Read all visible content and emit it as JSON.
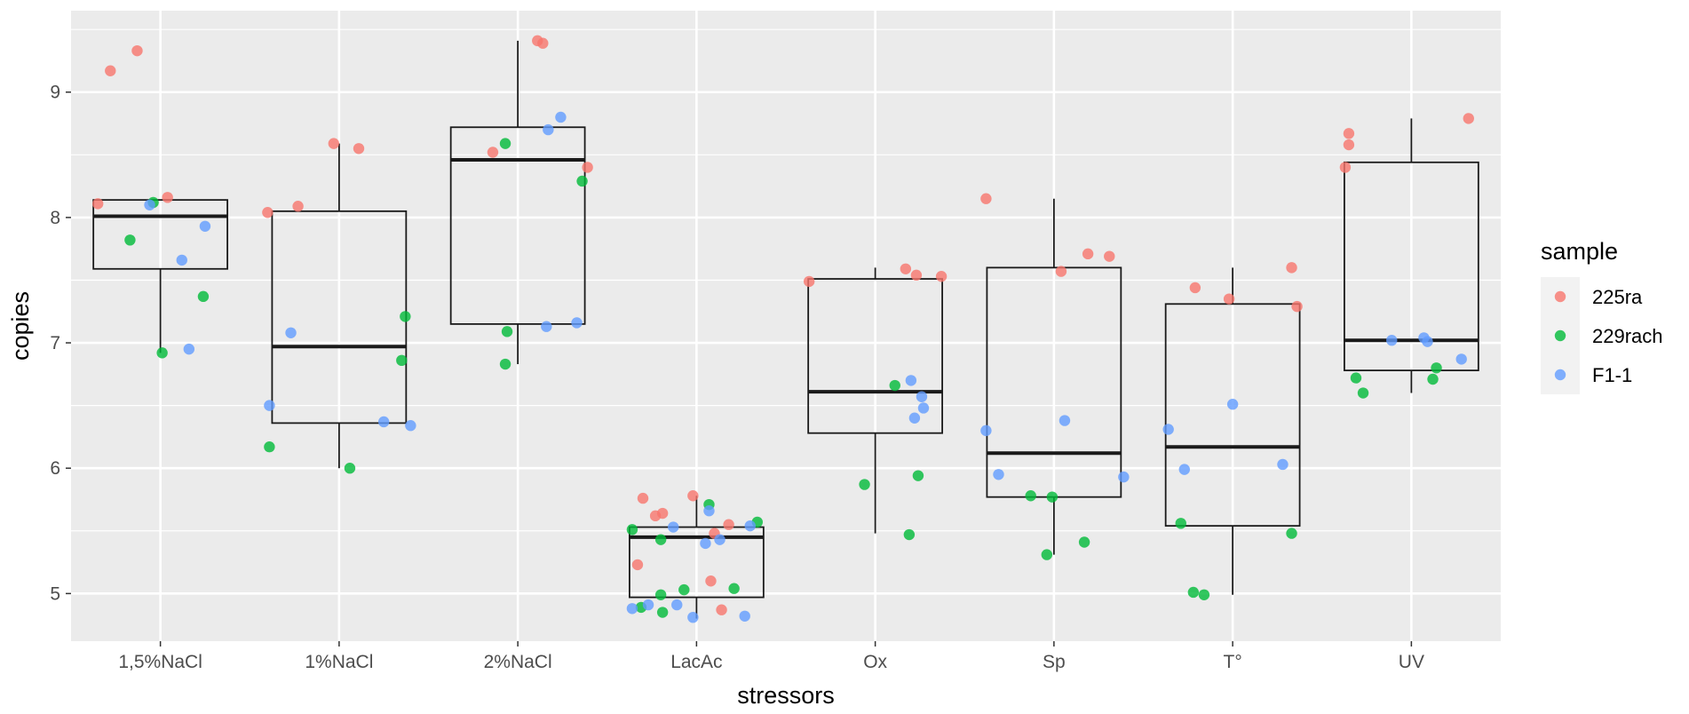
{
  "chart_data": {
    "type": "boxplot-jitter",
    "xlabel": "stressors",
    "ylabel": "copies",
    "ylim": [
      4.62,
      9.65
    ],
    "yticks": [
      5,
      6,
      7,
      8,
      9
    ],
    "categories": [
      "1,5%NaCl",
      "1%NaCl",
      "2%NaCl",
      "LacAc",
      "Ox",
      "Sp",
      "T°",
      "UV"
    ],
    "legend": {
      "title": "sample",
      "position": "right",
      "items": [
        {
          "name": "225ra",
          "color": "#F8766D"
        },
        {
          "name": "229rach",
          "color": "#00BA38"
        },
        {
          "name": "F1-1",
          "color": "#619CFF"
        }
      ]
    },
    "boxes": [
      {
        "category": "1,5%NaCl",
        "q1": 7.59,
        "median": 8.01,
        "q3": 8.14,
        "lower_whisker": 6.92,
        "upper_whisker": 8.14
      },
      {
        "category": "1%NaCl",
        "q1": 6.36,
        "median": 6.97,
        "q3": 8.05,
        "lower_whisker": 6.0,
        "upper_whisker": 8.59
      },
      {
        "category": "2%NaCl",
        "q1": 7.15,
        "median": 8.46,
        "q3": 8.72,
        "lower_whisker": 6.83,
        "upper_whisker": 9.41
      },
      {
        "category": "LacAc",
        "q1": 4.97,
        "median": 5.45,
        "q3": 5.53,
        "lower_whisker": 4.8,
        "upper_whisker": 5.78
      },
      {
        "category": "Ox",
        "q1": 6.28,
        "median": 6.61,
        "q3": 7.51,
        "lower_whisker": 5.48,
        "upper_whisker": 7.6
      },
      {
        "category": "Sp",
        "q1": 5.77,
        "median": 6.12,
        "q3": 7.6,
        "lower_whisker": 5.31,
        "upper_whisker": 8.15
      },
      {
        "category": "T°",
        "q1": 5.54,
        "median": 6.17,
        "q3": 7.31,
        "lower_whisker": 4.99,
        "upper_whisker": 7.6
      },
      {
        "category": "UV",
        "q1": 6.78,
        "median": 7.02,
        "q3": 8.44,
        "lower_whisker": 6.6,
        "upper_whisker": 8.79
      }
    ],
    "points": [
      {
        "category": "1,5%NaCl",
        "series": "225ra",
        "x": -0.35,
        "y": 8.11
      },
      {
        "category": "1,5%NaCl",
        "series": "225ra",
        "x": -0.28,
        "y": 9.17
      },
      {
        "category": "1,5%NaCl",
        "series": "225ra",
        "x": -0.13,
        "y": 9.33
      },
      {
        "category": "1,5%NaCl",
        "series": "225ra",
        "x": 0.04,
        "y": 8.16
      },
      {
        "category": "1,5%NaCl",
        "series": "229rach",
        "x": -0.17,
        "y": 7.82
      },
      {
        "category": "1,5%NaCl",
        "series": "229rach",
        "x": -0.04,
        "y": 8.12
      },
      {
        "category": "1,5%NaCl",
        "series": "229rach",
        "x": 0.01,
        "y": 6.92
      },
      {
        "category": "1,5%NaCl",
        "series": "229rach",
        "x": 0.24,
        "y": 7.37
      },
      {
        "category": "1,5%NaCl",
        "series": "F1-1",
        "x": -0.06,
        "y": 8.1
      },
      {
        "category": "1,5%NaCl",
        "series": "F1-1",
        "x": 0.12,
        "y": 7.66
      },
      {
        "category": "1,5%NaCl",
        "series": "F1-1",
        "x": 0.16,
        "y": 6.95
      },
      {
        "category": "1,5%NaCl",
        "series": "F1-1",
        "x": 0.25,
        "y": 7.93
      },
      {
        "category": "1%NaCl",
        "series": "225ra",
        "x": -0.4,
        "y": 8.04
      },
      {
        "category": "1%NaCl",
        "series": "225ra",
        "x": -0.23,
        "y": 8.09
      },
      {
        "category": "1%NaCl",
        "series": "225ra",
        "x": -0.03,
        "y": 8.59
      },
      {
        "category": "1%NaCl",
        "series": "225ra",
        "x": 0.11,
        "y": 8.55
      },
      {
        "category": "1%NaCl",
        "series": "229rach",
        "x": -0.39,
        "y": 6.17
      },
      {
        "category": "1%NaCl",
        "series": "229rach",
        "x": 0.06,
        "y": 6.0
      },
      {
        "category": "1%NaCl",
        "series": "229rach",
        "x": 0.35,
        "y": 6.86
      },
      {
        "category": "1%NaCl",
        "series": "229rach",
        "x": 0.37,
        "y": 7.21
      },
      {
        "category": "1%NaCl",
        "series": "F1-1",
        "x": -0.39,
        "y": 6.5
      },
      {
        "category": "1%NaCl",
        "series": "F1-1",
        "x": -0.27,
        "y": 7.08
      },
      {
        "category": "1%NaCl",
        "series": "F1-1",
        "x": 0.25,
        "y": 6.37
      },
      {
        "category": "1%NaCl",
        "series": "F1-1",
        "x": 0.4,
        "y": 6.34
      },
      {
        "category": "2%NaCl",
        "series": "225ra",
        "x": -0.14,
        "y": 8.52
      },
      {
        "category": "2%NaCl",
        "series": "225ra",
        "x": 0.11,
        "y": 9.41
      },
      {
        "category": "2%NaCl",
        "series": "225ra",
        "x": 0.14,
        "y": 9.39
      },
      {
        "category": "2%NaCl",
        "series": "225ra",
        "x": 0.39,
        "y": 8.4
      },
      {
        "category": "2%NaCl",
        "series": "229rach",
        "x": -0.07,
        "y": 8.59
      },
      {
        "category": "2%NaCl",
        "series": "229rach",
        "x": -0.06,
        "y": 7.09
      },
      {
        "category": "2%NaCl",
        "series": "229rach",
        "x": -0.07,
        "y": 6.83
      },
      {
        "category": "2%NaCl",
        "series": "229rach",
        "x": 0.36,
        "y": 8.29
      },
      {
        "category": "2%NaCl",
        "series": "F1-1",
        "x": 0.16,
        "y": 7.13
      },
      {
        "category": "2%NaCl",
        "series": "F1-1",
        "x": 0.17,
        "y": 8.7
      },
      {
        "category": "2%NaCl",
        "series": "F1-1",
        "x": 0.24,
        "y": 8.8
      },
      {
        "category": "2%NaCl",
        "series": "F1-1",
        "x": 0.33,
        "y": 7.16
      },
      {
        "category": "LacAc",
        "series": "225ra",
        "x": -0.33,
        "y": 5.23
      },
      {
        "category": "LacAc",
        "series": "225ra",
        "x": -0.3,
        "y": 5.76
      },
      {
        "category": "LacAc",
        "series": "225ra",
        "x": -0.23,
        "y": 5.62
      },
      {
        "category": "LacAc",
        "series": "225ra",
        "x": -0.19,
        "y": 5.64
      },
      {
        "category": "LacAc",
        "series": "225ra",
        "x": -0.02,
        "y": 5.78
      },
      {
        "category": "LacAc",
        "series": "225ra",
        "x": 0.08,
        "y": 5.1
      },
      {
        "category": "LacAc",
        "series": "225ra",
        "x": 0.1,
        "y": 5.48
      },
      {
        "category": "LacAc",
        "series": "225ra",
        "x": 0.14,
        "y": 4.87
      },
      {
        "category": "LacAc",
        "series": "225ra",
        "x": 0.18,
        "y": 5.55
      },
      {
        "category": "LacAc",
        "series": "229rach",
        "x": -0.36,
        "y": 5.51
      },
      {
        "category": "LacAc",
        "series": "229rach",
        "x": -0.31,
        "y": 4.89
      },
      {
        "category": "LacAc",
        "series": "229rach",
        "x": -0.2,
        "y": 4.99
      },
      {
        "category": "LacAc",
        "series": "229rach",
        "x": -0.2,
        "y": 5.43
      },
      {
        "category": "LacAc",
        "series": "229rach",
        "x": -0.19,
        "y": 4.85
      },
      {
        "category": "LacAc",
        "series": "229rach",
        "x": -0.07,
        "y": 5.03
      },
      {
        "category": "LacAc",
        "series": "229rach",
        "x": 0.07,
        "y": 5.71
      },
      {
        "category": "LacAc",
        "series": "229rach",
        "x": 0.21,
        "y": 5.04
      },
      {
        "category": "LacAc",
        "series": "229rach",
        "x": 0.34,
        "y": 5.57
      },
      {
        "category": "LacAc",
        "series": "F1-1",
        "x": -0.36,
        "y": 4.88
      },
      {
        "category": "LacAc",
        "series": "F1-1",
        "x": -0.27,
        "y": 4.91
      },
      {
        "category": "LacAc",
        "series": "F1-1",
        "x": -0.13,
        "y": 5.53
      },
      {
        "category": "LacAc",
        "series": "F1-1",
        "x": -0.11,
        "y": 4.91
      },
      {
        "category": "LacAc",
        "series": "F1-1",
        "x": -0.02,
        "y": 4.81
      },
      {
        "category": "LacAc",
        "series": "F1-1",
        "x": 0.05,
        "y": 5.4
      },
      {
        "category": "LacAc",
        "series": "F1-1",
        "x": 0.07,
        "y": 5.66
      },
      {
        "category": "LacAc",
        "series": "F1-1",
        "x": 0.13,
        "y": 5.43
      },
      {
        "category": "LacAc",
        "series": "F1-1",
        "x": 0.27,
        "y": 4.82
      },
      {
        "category": "LacAc",
        "series": "F1-1",
        "x": 0.3,
        "y": 5.54
      },
      {
        "category": "Ox",
        "series": "225ra",
        "x": -0.37,
        "y": 7.49
      },
      {
        "category": "Ox",
        "series": "225ra",
        "x": 0.17,
        "y": 7.59
      },
      {
        "category": "Ox",
        "series": "225ra",
        "x": 0.23,
        "y": 7.54
      },
      {
        "category": "Ox",
        "series": "225ra",
        "x": 0.37,
        "y": 7.53
      },
      {
        "category": "Ox",
        "series": "229rach",
        "x": -0.06,
        "y": 5.87
      },
      {
        "category": "Ox",
        "series": "229rach",
        "x": 0.11,
        "y": 6.66
      },
      {
        "category": "Ox",
        "series": "229rach",
        "x": 0.19,
        "y": 5.47
      },
      {
        "category": "Ox",
        "series": "229rach",
        "x": 0.24,
        "y": 5.94
      },
      {
        "category": "Ox",
        "series": "F1-1",
        "x": 0.2,
        "y": 6.7
      },
      {
        "category": "Ox",
        "series": "F1-1",
        "x": 0.22,
        "y": 6.4
      },
      {
        "category": "Ox",
        "series": "F1-1",
        "x": 0.26,
        "y": 6.57
      },
      {
        "category": "Ox",
        "series": "F1-1",
        "x": 0.27,
        "y": 6.48
      },
      {
        "category": "Sp",
        "series": "225ra",
        "x": -0.38,
        "y": 8.15
      },
      {
        "category": "Sp",
        "series": "225ra",
        "x": 0.04,
        "y": 7.57
      },
      {
        "category": "Sp",
        "series": "225ra",
        "x": 0.19,
        "y": 7.71
      },
      {
        "category": "Sp",
        "series": "225ra",
        "x": 0.31,
        "y": 7.69
      },
      {
        "category": "Sp",
        "series": "229rach",
        "x": -0.13,
        "y": 5.78
      },
      {
        "category": "Sp",
        "series": "229rach",
        "x": -0.04,
        "y": 5.31
      },
      {
        "category": "Sp",
        "series": "229rach",
        "x": -0.01,
        "y": 5.77
      },
      {
        "category": "Sp",
        "series": "229rach",
        "x": 0.17,
        "y": 5.41
      },
      {
        "category": "Sp",
        "series": "F1-1",
        "x": -0.38,
        "y": 6.3
      },
      {
        "category": "Sp",
        "series": "F1-1",
        "x": -0.31,
        "y": 5.95
      },
      {
        "category": "Sp",
        "series": "F1-1",
        "x": 0.06,
        "y": 6.38
      },
      {
        "category": "Sp",
        "series": "F1-1",
        "x": 0.39,
        "y": 5.93
      },
      {
        "category": "T°",
        "series": "225ra",
        "x": -0.21,
        "y": 7.44
      },
      {
        "category": "T°",
        "series": "225ra",
        "x": -0.02,
        "y": 7.35
      },
      {
        "category": "T°",
        "series": "225ra",
        "x": 0.33,
        "y": 7.6
      },
      {
        "category": "T°",
        "series": "225ra",
        "x": 0.36,
        "y": 7.29
      },
      {
        "category": "T°",
        "series": "229rach",
        "x": -0.29,
        "y": 5.56
      },
      {
        "category": "T°",
        "series": "229rach",
        "x": -0.22,
        "y": 5.01
      },
      {
        "category": "T°",
        "series": "229rach",
        "x": -0.16,
        "y": 4.99
      },
      {
        "category": "T°",
        "series": "229rach",
        "x": 0.33,
        "y": 5.48
      },
      {
        "category": "T°",
        "series": "F1-1",
        "x": -0.36,
        "y": 6.31
      },
      {
        "category": "T°",
        "series": "F1-1",
        "x": -0.27,
        "y": 5.99
      },
      {
        "category": "T°",
        "series": "F1-1",
        "x": 0.0,
        "y": 6.51
      },
      {
        "category": "T°",
        "series": "F1-1",
        "x": 0.28,
        "y": 6.03
      },
      {
        "category": "UV",
        "series": "225ra",
        "x": -0.37,
        "y": 8.4
      },
      {
        "category": "UV",
        "series": "225ra",
        "x": -0.35,
        "y": 8.58
      },
      {
        "category": "UV",
        "series": "225ra",
        "x": -0.35,
        "y": 8.67
      },
      {
        "category": "UV",
        "series": "225ra",
        "x": 0.32,
        "y": 8.79
      },
      {
        "category": "UV",
        "series": "229rach",
        "x": -0.31,
        "y": 6.72
      },
      {
        "category": "UV",
        "series": "229rach",
        "x": -0.27,
        "y": 6.6
      },
      {
        "category": "UV",
        "series": "229rach",
        "x": 0.12,
        "y": 6.71
      },
      {
        "category": "UV",
        "series": "229rach",
        "x": 0.14,
        "y": 6.8
      },
      {
        "category": "UV",
        "series": "F1-1",
        "x": -0.11,
        "y": 7.02
      },
      {
        "category": "UV",
        "series": "F1-1",
        "x": 0.07,
        "y": 7.04
      },
      {
        "category": "UV",
        "series": "F1-1",
        "x": 0.09,
        "y": 7.01
      },
      {
        "category": "UV",
        "series": "F1-1",
        "x": 0.28,
        "y": 6.87
      }
    ]
  }
}
